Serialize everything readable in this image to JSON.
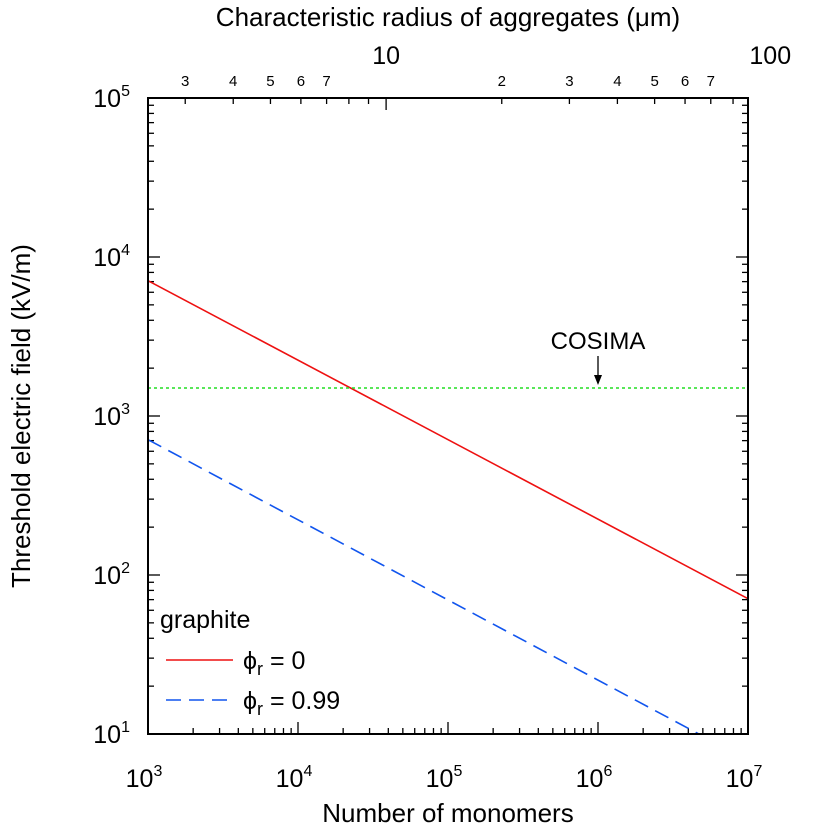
{
  "chart_data": {
    "type": "line",
    "xlabel": "Number of monomers",
    "ylabel": "Threshold electric field (kV/m)",
    "x2label": "Characteristic radius of aggregates (μm)",
    "xscale": "log",
    "yscale": "log",
    "xlim": [
      1000,
      10000000
    ],
    "ylim": [
      10,
      100000
    ],
    "x_ticks": [
      {
        "value": 1000,
        "base": "10",
        "exp": "3"
      },
      {
        "value": 10000,
        "base": "10",
        "exp": "4"
      },
      {
        "value": 100000,
        "base": "10",
        "exp": "5"
      },
      {
        "value": 1000000,
        "base": "10",
        "exp": "6"
      },
      {
        "value": 10000000,
        "base": "10",
        "exp": "7"
      }
    ],
    "y_ticks": [
      {
        "value": 10,
        "base": "10",
        "exp": "1"
      },
      {
        "value": 100,
        "base": "10",
        "exp": "2"
      },
      {
        "value": 1000,
        "base": "10",
        "exp": "3"
      },
      {
        "value": 10000,
        "base": "10",
        "exp": "4"
      },
      {
        "value": 100000,
        "base": "10",
        "exp": "5"
      }
    ],
    "x2_major_ticks": [
      {
        "value": 10,
        "label": "10"
      },
      {
        "value": 100,
        "label": "100"
      }
    ],
    "x2_minor_labels": [
      "3",
      "4",
      "5",
      "6",
      "7",
      "2",
      "3",
      "4",
      "5",
      "6",
      "7"
    ],
    "x2_minor_values": [
      3,
      4,
      5,
      6,
      7,
      20,
      30,
      40,
      50,
      60,
      70
    ],
    "x2_radius_at_x_min": 2.4,
    "x2_radius_at_x_max": 87.5,
    "grid": false,
    "legend": {
      "placement": "bottom-left",
      "title": "graphite"
    },
    "series": [
      {
        "phi_symbol": "ϕ",
        "phi_sub": "r",
        "phi_value": " = 0",
        "color": "#ee1111",
        "dash": "solid",
        "x": [
          1000,
          10000000
        ],
        "y": [
          7100,
          71
        ]
      },
      {
        "phi_symbol": "ϕ",
        "phi_sub": "r",
        "phi_value": " = 0.99",
        "color": "#1155ee",
        "dash": "dashed",
        "x": [
          1000,
          4700000
        ],
        "y": [
          710,
          10
        ]
      }
    ],
    "reference_line": {
      "label": "COSIMA",
      "y": 1500,
      "color": "#22dd22",
      "dash": "dotted",
      "arrow_x": 1000000
    }
  }
}
